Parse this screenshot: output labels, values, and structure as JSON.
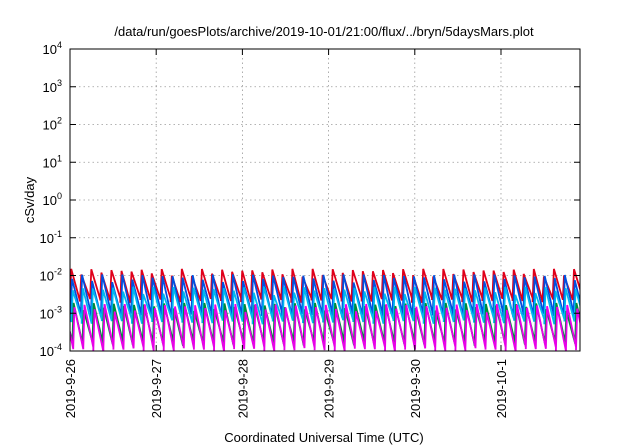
{
  "chart_data": {
    "type": "line",
    "title": "/data/run/goesPlots/archive/2019-10-01/21:00/flux/../bryn/5daysMars.plot",
    "xlabel": "Coordinated Universal Time (UTC)",
    "ylabel": "cSv/day",
    "yscale": "log",
    "ylim": [
      0.0001,
      10000
    ],
    "xlim": [
      "2019-09-26T00:00",
      "2019-10-01T22:00"
    ],
    "grid": true,
    "legend": "none",
    "x_ticks": [
      {
        "label": "2019-9-26",
        "x": "2019-09-26T00:00"
      },
      {
        "label": "2019-9-27",
        "x": "2019-09-27T00:00"
      },
      {
        "label": "2019-9-28",
        "x": "2019-09-28T00:00"
      },
      {
        "label": "2019-9-29",
        "x": "2019-09-29T00:00"
      },
      {
        "label": "2019-9-30",
        "x": "2019-09-30T00:00"
      },
      {
        "label": "2019-10-1",
        "x": "2019-10-01T00:00"
      }
    ],
    "y_ticks": [
      {
        "base": "10",
        "exp": "-4",
        "value": 0.0001
      },
      {
        "base": "10",
        "exp": "-3",
        "value": 0.001
      },
      {
        "base": "10",
        "exp": "-2",
        "value": 0.01
      },
      {
        "base": "10",
        "exp": "-1",
        "value": 0.1
      },
      {
        "base": "10",
        "exp": "0",
        "value": 1
      },
      {
        "base": "10",
        "exp": "1",
        "value": 10
      },
      {
        "base": "10",
        "exp": "2",
        "value": 100
      },
      {
        "base": "10",
        "exp": "3",
        "value": 1000
      },
      {
        "base": "10",
        "exp": "4",
        "value": 10000
      }
    ],
    "sawtooth_period_hours": 2.8,
    "series": [
      {
        "color": "#e0001a",
        "high": 0.012,
        "low": 0.0022
      },
      {
        "color": "#0050e0",
        "high": 0.0085,
        "low": 0.0009
      },
      {
        "color": "#00b8f0",
        "high": 0.004,
        "low": 0.0006
      },
      {
        "color": "#008a3c",
        "high": 0.0015,
        "low": 0.00016
      },
      {
        "color": "#e800e8",
        "high": 0.0014,
        "low": 0.00011
      }
    ]
  }
}
